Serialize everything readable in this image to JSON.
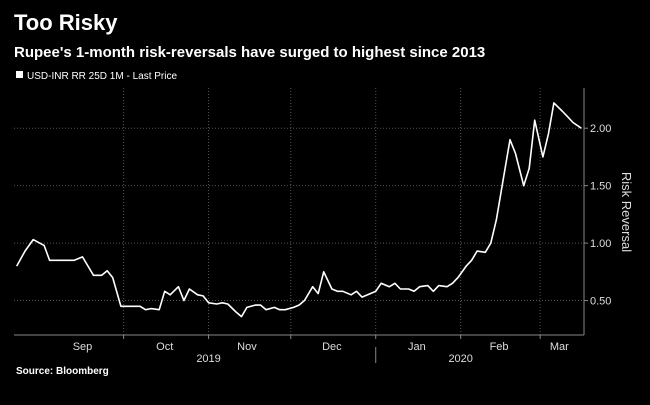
{
  "title": "Too Risky",
  "subtitle": "Rupee's 1-month risk-reversals have surged to highest since 2013",
  "source": "Source: Bloomberg",
  "colors": {
    "background": "#000000",
    "line": "#ffffff",
    "grid": "#555555"
  },
  "chart_data": {
    "type": "line",
    "title": "Too Risky",
    "subtitle": "Rupee's 1-month risk-reversals have surged to highest since 2013",
    "ylabel": "Risk Reversal",
    "ylim": [
      0.2,
      2.35
    ],
    "y_ticks": [
      "0.50",
      "1.00",
      "1.50",
      "2.00"
    ],
    "month_labels": [
      "Sep",
      "Oct",
      "Nov",
      "Dec",
      "Jan",
      "Feb",
      "Mar"
    ],
    "year_labels": [
      "2019",
      "2020"
    ],
    "grid": true,
    "legend": "top-left",
    "series": [
      {
        "name": "USD-INR RR 25D 1M - Last Price",
        "x": [
          "2019-08-23",
          "2019-08-26",
          "2019-08-29",
          "2019-09-02",
          "2019-09-04",
          "2019-09-06",
          "2019-09-09",
          "2019-09-11",
          "2019-09-13",
          "2019-09-16",
          "2019-09-18",
          "2019-09-20",
          "2019-09-23",
          "2019-09-25",
          "2019-09-27",
          "2019-09-30",
          "2019-10-02",
          "2019-10-04",
          "2019-10-07",
          "2019-10-09",
          "2019-10-11",
          "2019-10-14",
          "2019-10-16",
          "2019-10-18",
          "2019-10-21",
          "2019-10-23",
          "2019-10-25",
          "2019-10-28",
          "2019-10-30",
          "2019-11-01",
          "2019-11-04",
          "2019-11-06",
          "2019-11-08",
          "2019-11-11",
          "2019-11-13",
          "2019-11-15",
          "2019-11-18",
          "2019-11-20",
          "2019-11-22",
          "2019-11-25",
          "2019-11-27",
          "2019-11-29",
          "2019-12-02",
          "2019-12-04",
          "2019-12-06",
          "2019-12-09",
          "2019-12-11",
          "2019-12-13",
          "2019-12-16",
          "2019-12-18",
          "2019-12-20",
          "2019-12-23",
          "2019-12-25",
          "2019-12-27",
          "2019-12-30",
          "2020-01-01",
          "2020-01-03",
          "2020-01-06",
          "2020-01-08",
          "2020-01-10",
          "2020-01-13",
          "2020-01-15",
          "2020-01-17",
          "2020-01-20",
          "2020-01-22",
          "2020-01-24",
          "2020-01-27",
          "2020-01-29",
          "2020-01-31",
          "2020-02-03",
          "2020-02-05",
          "2020-02-07",
          "2020-02-10",
          "2020-02-12",
          "2020-02-14",
          "2020-02-17",
          "2020-02-19",
          "2020-02-21",
          "2020-02-24",
          "2020-02-26",
          "2020-02-28",
          "2020-03-02",
          "2020-03-04",
          "2020-03-06",
          "2020-03-09",
          "2020-03-11",
          "2020-03-13",
          "2020-03-16"
        ],
        "values": [
          0.8,
          0.93,
          1.03,
          0.98,
          0.85,
          0.85,
          0.85,
          0.85,
          0.85,
          0.88,
          0.8,
          0.72,
          0.72,
          0.76,
          0.7,
          0.45,
          0.45,
          0.45,
          0.45,
          0.42,
          0.43,
          0.42,
          0.58,
          0.55,
          0.62,
          0.5,
          0.6,
          0.55,
          0.54,
          0.48,
          0.47,
          0.48,
          0.47,
          0.4,
          0.36,
          0.44,
          0.46,
          0.46,
          0.42,
          0.44,
          0.42,
          0.42,
          0.44,
          0.46,
          0.5,
          0.62,
          0.56,
          0.75,
          0.6,
          0.58,
          0.58,
          0.55,
          0.58,
          0.53,
          0.56,
          0.58,
          0.65,
          0.62,
          0.65,
          0.6,
          0.6,
          0.58,
          0.62,
          0.63,
          0.58,
          0.63,
          0.62,
          0.65,
          0.7,
          0.8,
          0.85,
          0.93,
          0.92,
          1.0,
          1.2,
          1.62,
          1.9,
          1.78,
          1.5,
          1.65,
          2.07,
          1.75,
          1.95,
          2.22,
          2.15,
          2.1,
          2.05,
          2.0
        ]
      }
    ]
  }
}
